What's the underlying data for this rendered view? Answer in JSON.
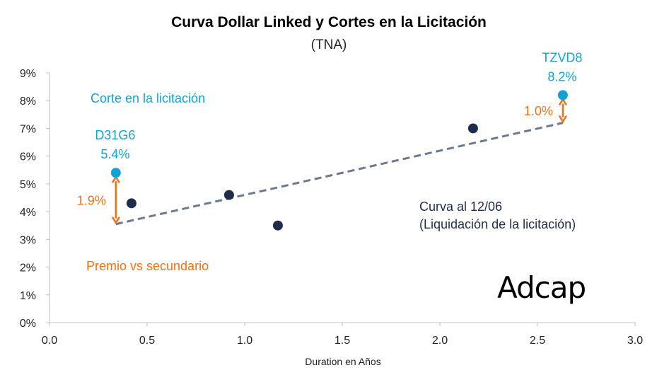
{
  "chart_data": {
    "type": "scatter",
    "title": "Curva Dollar Linked y Cortes en la Licitación",
    "subtitle": "(TNA)",
    "xlabel": "Duration en Años",
    "ylabel": "",
    "xlim": [
      0.0,
      3.0
    ],
    "ylim": [
      0,
      9
    ],
    "x_ticks": [
      "0.0",
      "0.5",
      "1.0",
      "1.5",
      "2.0",
      "2.5",
      "3.0"
    ],
    "y_ticks": [
      "0%",
      "1%",
      "2%",
      "3%",
      "4%",
      "5%",
      "6%",
      "7%",
      "8%",
      "9%"
    ],
    "grid": false,
    "series": [
      {
        "name": "Curva al 12/06",
        "color": "#1f2d4d",
        "points": [
          {
            "x": 0.42,
            "y": 4.3
          },
          {
            "x": 0.92,
            "y": 4.6
          },
          {
            "x": 1.17,
            "y": 3.5
          },
          {
            "x": 2.17,
            "y": 7.0
          }
        ]
      },
      {
        "name": "Corte en la licitación",
        "color": "#12a3d6",
        "points": [
          {
            "x": 0.34,
            "y": 5.4,
            "label": "D31G6",
            "value_label": "5.4%"
          },
          {
            "x": 2.63,
            "y": 8.2,
            "label": "TZVD8",
            "value_label": "8.2%"
          }
        ]
      }
    ],
    "trendline": {
      "color": "#6b7a90",
      "style": "dashed",
      "from": {
        "x": 0.34,
        "y": 3.55
      },
      "to": {
        "x": 2.63,
        "y": 7.2
      }
    },
    "spreads": [
      {
        "x": 0.34,
        "y_from": 3.55,
        "y_to": 5.4,
        "label": "1.9%",
        "color": "#f07017"
      },
      {
        "x": 2.63,
        "y_from": 7.2,
        "y_to": 8.2,
        "label": "1.0%",
        "color": "#f07017"
      }
    ],
    "annotations": {
      "corte": "Corte en la licitación",
      "premio": "Premio vs secundario",
      "curva_line1": "Curva al 12/06",
      "curva_line2": "(Liquidación de la licitación)"
    },
    "logo": "Adcap"
  }
}
